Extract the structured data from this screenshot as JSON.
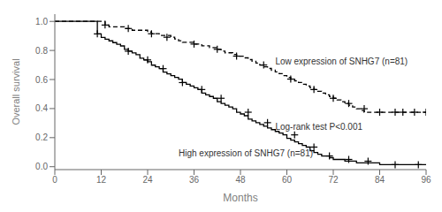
{
  "chart_data": {
    "type": "line",
    "xlabel": "Months",
    "ylabel": "Overall survival",
    "xlim": [
      0,
      96
    ],
    "ylim": [
      -0.02,
      1.05
    ],
    "xticks": [
      0,
      12,
      24,
      36,
      48,
      60,
      72,
      84,
      96
    ],
    "yticks": [
      {
        "value": 0,
        "label": "0.0"
      },
      0.2,
      0.4,
      0.6,
      0.8,
      {
        "value": 1,
        "label": "1.0"
      }
    ],
    "grid": false,
    "series": [
      {
        "type": "step",
        "line_style": "dashed",
        "color": "black",
        "x": [
          0,
          3,
          5,
          6,
          7,
          8,
          9,
          10,
          11,
          12,
          13,
          14,
          15,
          16,
          17,
          18,
          19,
          20,
          21,
          22,
          23,
          24,
          25,
          26,
          27,
          28,
          29,
          30,
          31,
          32,
          33,
          34,
          35,
          36,
          37,
          38,
          39,
          40,
          41,
          42,
          43,
          44,
          45,
          46,
          47,
          48,
          49,
          50,
          51,
          52,
          53,
          54,
          55,
          56,
          57,
          58,
          59,
          60,
          61,
          62,
          63,
          64,
          65,
          66,
          67,
          68,
          69,
          70,
          71,
          72,
          73,
          74,
          75,
          76,
          77,
          78,
          79,
          80,
          81,
          82,
          83,
          84,
          85,
          86,
          87,
          88,
          89,
          90,
          91,
          92,
          93,
          94,
          95,
          96
        ],
        "values": [
          1.0,
          1.0,
          1.0,
          1.0,
          1.0,
          1.0,
          1.0,
          1.0,
          1.0,
          1.0,
          0.975,
          0.963,
          0.963,
          0.963,
          0.963,
          0.951,
          0.951,
          0.939,
          0.939,
          0.939,
          0.939,
          0.927,
          0.915,
          0.915,
          0.903,
          0.903,
          0.903,
          0.891,
          0.879,
          0.867,
          0.856,
          0.856,
          0.856,
          0.844,
          0.844,
          0.832,
          0.832,
          0.82,
          0.82,
          0.808,
          0.796,
          0.784,
          0.784,
          0.773,
          0.761,
          0.761,
          0.749,
          0.737,
          0.725,
          0.713,
          0.7,
          0.688,
          0.676,
          0.664,
          0.652,
          0.64,
          0.627,
          0.615,
          0.603,
          0.591,
          0.579,
          0.567,
          0.555,
          0.543,
          0.531,
          0.519,
          0.507,
          0.495,
          0.483,
          0.471,
          0.459,
          0.447,
          0.435,
          0.423,
          0.411,
          0.399,
          0.387,
          0.375,
          0.375,
          0.375,
          0.375,
          0.375,
          0.375,
          0.375,
          0.375,
          0.375,
          0.375,
          0.375,
          0.375,
          0.375,
          0.375,
          0.375,
          0.375,
          0.375
        ]
      },
      {
        "type": "step",
        "line_style": "solid",
        "color": "black",
        "x": [
          0,
          1,
          2,
          3,
          4,
          5,
          6,
          7,
          8,
          9,
          10,
          11,
          12,
          13,
          14,
          15,
          16,
          17,
          18,
          19,
          20,
          21,
          22,
          23,
          24,
          25,
          26,
          27,
          28,
          29,
          30,
          31,
          32,
          33,
          34,
          35,
          36,
          37,
          38,
          39,
          40,
          41,
          42,
          43,
          44,
          45,
          46,
          47,
          48,
          49,
          50,
          51,
          52,
          53,
          54,
          55,
          56,
          57,
          58,
          59,
          60,
          61,
          62,
          63,
          64,
          65,
          66,
          67,
          68,
          69,
          70,
          71,
          72,
          73,
          74,
          75,
          76,
          77,
          78,
          79,
          80,
          81,
          82,
          83,
          84,
          85,
          86,
          87,
          88,
          89,
          90,
          91,
          92,
          93,
          94,
          95,
          96
        ],
        "values": [
          1.0,
          1.0,
          1.0,
          1.0,
          1.0,
          1.0,
          1.0,
          1.0,
          1.0,
          1.0,
          1.0,
          0.914,
          0.89,
          0.878,
          0.866,
          0.854,
          0.843,
          0.831,
          0.807,
          0.795,
          0.783,
          0.771,
          0.747,
          0.735,
          0.723,
          0.699,
          0.687,
          0.675,
          0.651,
          0.639,
          0.627,
          0.615,
          0.603,
          0.579,
          0.567,
          0.555,
          0.543,
          0.531,
          0.507,
          0.495,
          0.483,
          0.471,
          0.447,
          0.435,
          0.423,
          0.411,
          0.399,
          0.375,
          0.363,
          0.351,
          0.327,
          0.315,
          0.303,
          0.291,
          0.279,
          0.267,
          0.255,
          0.243,
          0.231,
          0.219,
          0.195,
          0.183,
          0.171,
          0.159,
          0.147,
          0.135,
          0.11,
          0.098,
          0.086,
          0.074,
          0.074,
          0.062,
          0.05,
          0.05,
          0.05,
          0.038,
          0.038,
          0.038,
          0.026,
          0.026,
          0.026,
          0.026,
          0.026,
          0.026,
          0.014,
          0.014,
          0.014,
          0.014,
          0.014,
          0.014,
          0.014,
          0.014,
          0.014,
          0.014,
          0.014,
          0.014,
          0.014
        ]
      },
      {
        "type": "scatter",
        "marker": "+",
        "color": "black",
        "x": [
          13,
          19,
          25,
          29,
          36,
          42,
          47,
          54,
          61,
          67,
          72,
          76,
          80,
          84,
          88,
          90,
          93,
          96
        ],
        "values": [
          0.975,
          0.951,
          0.915,
          0.891,
          0.844,
          0.808,
          0.761,
          0.7,
          0.603,
          0.531,
          0.471,
          0.435,
          0.399,
          0.375,
          0.375,
          0.375,
          0.375,
          0.375
        ]
      },
      {
        "type": "scatter",
        "marker": "+",
        "color": "black",
        "x": [
          11,
          19,
          24,
          28,
          33,
          38,
          43,
          50,
          55,
          62,
          67,
          71,
          76,
          81,
          88,
          94
        ],
        "values": [
          0.914,
          0.795,
          0.735,
          0.675,
          0.579,
          0.531,
          0.471,
          0.375,
          0.303,
          0.219,
          0.135,
          0.074,
          0.05,
          0.038,
          0.014,
          0.014
        ]
      }
    ],
    "annotations": [
      {
        "text": "Low expression of SNHG7 (n=81)",
        "x": 57,
        "y": 0.72
      },
      {
        "text": "Log-rank test P<0.001",
        "x": 57,
        "y": 0.27
      },
      {
        "text": "High expression of SNHG7 (n=81)",
        "x": 32,
        "y": 0.085
      }
    ]
  }
}
